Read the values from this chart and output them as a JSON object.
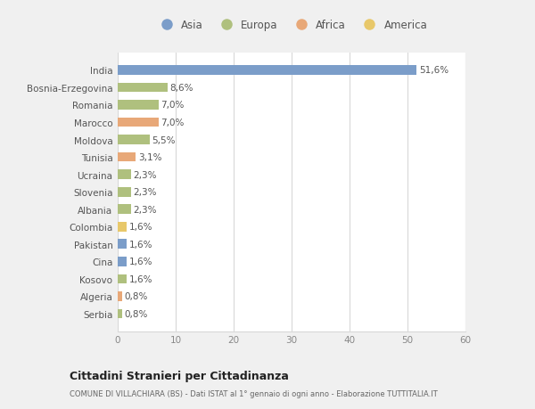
{
  "categories": [
    "India",
    "Bosnia-Erzegovina",
    "Romania",
    "Marocco",
    "Moldova",
    "Tunisia",
    "Ucraina",
    "Slovenia",
    "Albania",
    "Colombia",
    "Pakistan",
    "Cina",
    "Kosovo",
    "Algeria",
    "Serbia"
  ],
  "values": [
    51.6,
    8.6,
    7.0,
    7.0,
    5.5,
    3.1,
    2.3,
    2.3,
    2.3,
    1.6,
    1.6,
    1.6,
    1.6,
    0.8,
    0.8
  ],
  "labels": [
    "51,6%",
    "8,6%",
    "7,0%",
    "7,0%",
    "5,5%",
    "3,1%",
    "2,3%",
    "2,3%",
    "2,3%",
    "1,6%",
    "1,6%",
    "1,6%",
    "1,6%",
    "0,8%",
    "0,8%"
  ],
  "colors": [
    "#7b9dc9",
    "#afc07e",
    "#afc07e",
    "#e8a878",
    "#afc07e",
    "#e8a878",
    "#afc07e",
    "#afc07e",
    "#afc07e",
    "#e8c86a",
    "#7b9dc9",
    "#7b9dc9",
    "#afc07e",
    "#e8a878",
    "#afc07e"
  ],
  "legend_labels": [
    "Asia",
    "Europa",
    "Africa",
    "America"
  ],
  "legend_colors": [
    "#7b9dc9",
    "#afc07e",
    "#e8a878",
    "#e8c86a"
  ],
  "title": "Cittadini Stranieri per Cittadinanza",
  "subtitle": "COMUNE DI VILLACHIARA (BS) - Dati ISTAT al 1° gennaio di ogni anno - Elaborazione TUTTITALIA.IT",
  "xlim": [
    0,
    60
  ],
  "xticks": [
    0,
    10,
    20,
    30,
    40,
    50,
    60
  ],
  "bg_color": "#f0f0f0",
  "plot_bg_color": "#ffffff",
  "grid_color": "#d8d8d8",
  "bar_height": 0.55,
  "label_fontsize": 7.5,
  "tick_fontsize": 7.5,
  "legend_fontsize": 8.5
}
